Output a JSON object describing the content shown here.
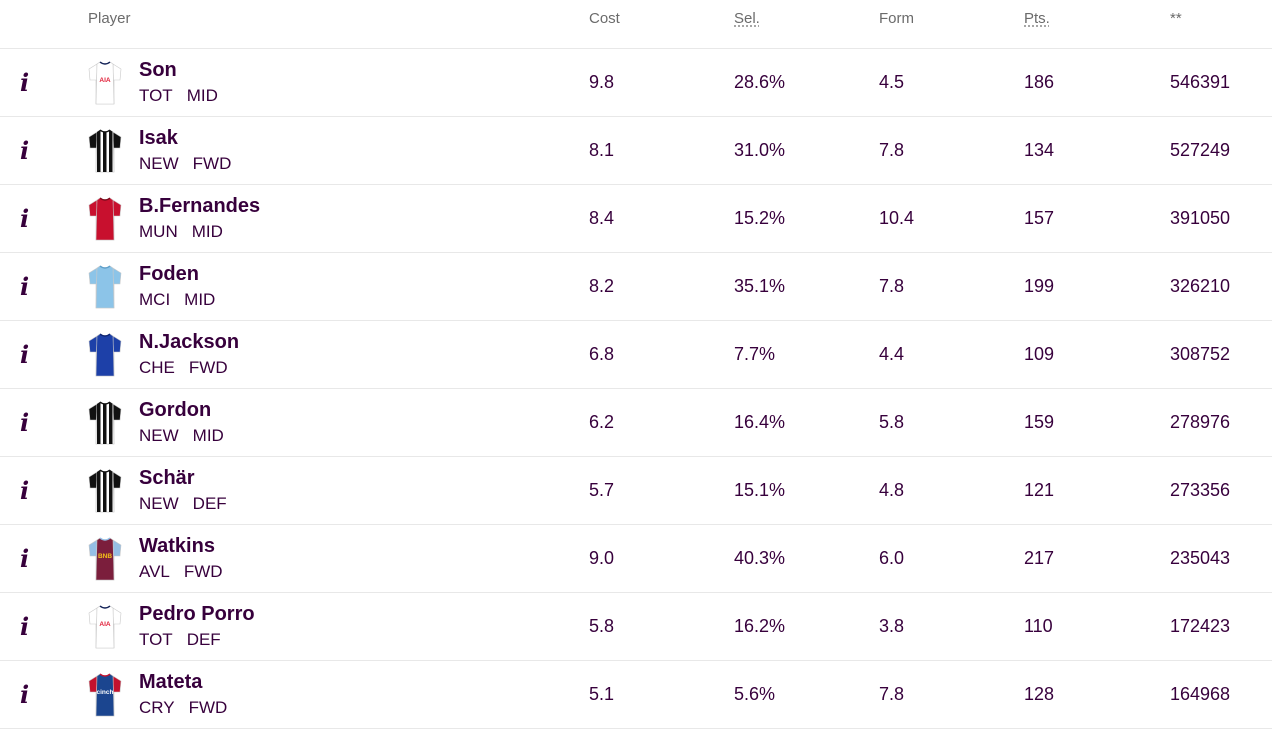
{
  "headers": {
    "player": "Player",
    "cost": "Cost",
    "sel": "Sel.",
    "form": "Form",
    "pts": "Pts.",
    "last": "**"
  },
  "info_icon": "info-icon",
  "players": [
    {
      "name": "Son",
      "team": "TOT",
      "pos": "MID",
      "cost": "9.8",
      "sel": "28.6%",
      "form": "4.5",
      "pts": "186",
      "stat": "546391",
      "shirt": {
        "base": "#ffffff",
        "trim": "#132257",
        "stripes": false,
        "sleeve": "#ffffff",
        "sponsor": "AIA",
        "sponsor_color": "#e01e37"
      }
    },
    {
      "name": "Isak",
      "team": "NEW",
      "pos": "FWD",
      "cost": "8.1",
      "sel": "31.0%",
      "form": "7.8",
      "pts": "134",
      "stat": "527249",
      "shirt": {
        "base": "#ffffff",
        "trim": "#111111",
        "stripes": true,
        "sleeve": "#111111",
        "sponsor": "",
        "sponsor_color": "#111111"
      }
    },
    {
      "name": "B.Fernandes",
      "team": "MUN",
      "pos": "MID",
      "cost": "8.4",
      "sel": "15.2%",
      "form": "10.4",
      "pts": "157",
      "stat": "391050",
      "shirt": {
        "base": "#c8102e",
        "trim": "#7a0a1c",
        "stripes": false,
        "sleeve": "#c8102e",
        "sponsor": "",
        "sponsor_color": "#ffffff"
      }
    },
    {
      "name": "Foden",
      "team": "MCI",
      "pos": "MID",
      "cost": "8.2",
      "sel": "35.1%",
      "form": "7.8",
      "pts": "199",
      "stat": "326210",
      "shirt": {
        "base": "#8cc4e8",
        "trim": "#5f9fc9",
        "stripes": false,
        "sleeve": "#8cc4e8",
        "sponsor": "",
        "sponsor_color": "#ffffff"
      }
    },
    {
      "name": "N.Jackson",
      "team": "CHE",
      "pos": "FWD",
      "cost": "6.8",
      "sel": "7.7%",
      "form": "4.4",
      "pts": "109",
      "stat": "308752",
      "shirt": {
        "base": "#1d40a8",
        "trim": "#0e2470",
        "stripes": false,
        "sleeve": "#1d40a8",
        "sponsor": "",
        "sponsor_color": "#ffffff"
      }
    },
    {
      "name": "Gordon",
      "team": "NEW",
      "pos": "MID",
      "cost": "6.2",
      "sel": "16.4%",
      "form": "5.8",
      "pts": "159",
      "stat": "278976",
      "shirt": {
        "base": "#ffffff",
        "trim": "#111111",
        "stripes": true,
        "sleeve": "#111111",
        "sponsor": "",
        "sponsor_color": "#111111"
      }
    },
    {
      "name": "Schär",
      "team": "NEW",
      "pos": "DEF",
      "cost": "5.7",
      "sel": "15.1%",
      "form": "4.8",
      "pts": "121",
      "stat": "273356",
      "shirt": {
        "base": "#ffffff",
        "trim": "#111111",
        "stripes": true,
        "sleeve": "#111111",
        "sponsor": "",
        "sponsor_color": "#111111"
      }
    },
    {
      "name": "Watkins",
      "team": "AVL",
      "pos": "FWD",
      "cost": "9.0",
      "sel": "40.3%",
      "form": "6.0",
      "pts": "217",
      "stat": "235043",
      "shirt": {
        "base": "#7b1e3c",
        "trim": "#95bfe5",
        "stripes": false,
        "sleeve": "#95bfe5",
        "sponsor": "BNB",
        "sponsor_color": "#f3c019"
      }
    },
    {
      "name": "Pedro Porro",
      "team": "TOT",
      "pos": "DEF",
      "cost": "5.8",
      "sel": "16.2%",
      "form": "3.8",
      "pts": "110",
      "stat": "172423",
      "shirt": {
        "base": "#ffffff",
        "trim": "#132257",
        "stripes": false,
        "sleeve": "#ffffff",
        "sponsor": "AIA",
        "sponsor_color": "#e01e37"
      }
    },
    {
      "name": "Mateta",
      "team": "CRY",
      "pos": "FWD",
      "cost": "5.1",
      "sel": "5.6%",
      "form": "7.8",
      "pts": "128",
      "stat": "164968",
      "shirt": {
        "base": "#1b458f",
        "trim": "#c4122e",
        "stripes": false,
        "sleeve": "#c4122e",
        "sponsor": "cinch",
        "sponsor_color": "#ffffff"
      }
    }
  ]
}
